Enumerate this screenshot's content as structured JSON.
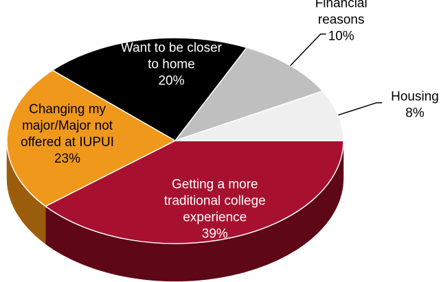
{
  "chart_data": {
    "type": "pie",
    "title": "",
    "slices": [
      {
        "name": "Getting a more traditional college experience",
        "label_lines": [
          "Getting a more",
          "traditional college",
          "experience"
        ],
        "value": 39,
        "value_label": "39%",
        "color": "#a8102f",
        "side_color": "#5e0716"
      },
      {
        "name": "Changing my major/Major not offered at IUPUI",
        "label_lines": [
          "Changing my",
          "major/Major not",
          "offered at IUPUI"
        ],
        "value": 23,
        "value_label": "23%",
        "color": "#f0981c",
        "side_color": "#9b5d0c"
      },
      {
        "name": "Want to be closer to home",
        "label_lines": [
          "Want to be closer",
          "to home"
        ],
        "value": 20,
        "value_label": "20%",
        "color": "#000000",
        "side_color": "#000000"
      },
      {
        "name": "Financial reasons",
        "label_lines": [
          "Financial",
          "reasons"
        ],
        "value": 10,
        "value_label": "10%",
        "color": "#bfbfbf",
        "side_color": "#8c8c8c"
      },
      {
        "name": "Housing",
        "label_lines": [
          "Housing"
        ],
        "value": 8,
        "value_label": "8%",
        "color": "#efefef",
        "side_color": "#bdbdbd"
      }
    ]
  }
}
